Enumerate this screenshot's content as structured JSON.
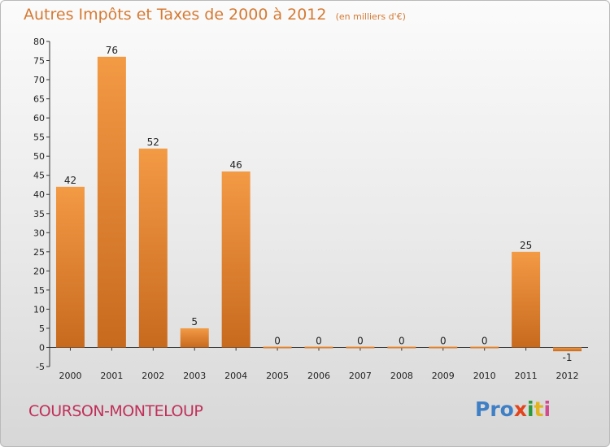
{
  "chart_data": {
    "type": "bar",
    "title": "Autres Impôts et Taxes de 2000 à 2012",
    "subtitle": "(en milliers d'€)",
    "categories": [
      "2000",
      "2001",
      "2002",
      "2003",
      "2004",
      "2005",
      "2006",
      "2007",
      "2008",
      "2009",
      "2010",
      "2011",
      "2012"
    ],
    "values": [
      42,
      76,
      52,
      5,
      46,
      0,
      0,
      0,
      0,
      0,
      0,
      25,
      -1
    ],
    "ylim": [
      -5,
      80
    ],
    "yticks": [
      -5,
      0,
      5,
      10,
      15,
      20,
      25,
      30,
      35,
      40,
      45,
      50,
      55,
      60,
      65,
      70,
      75,
      80
    ],
    "grid": false,
    "bar_color": "#f39a45",
    "bar_color_dark": "#c86a1e"
  },
  "location": "COURSON-MONTELOUP",
  "logo": {
    "p": "Pro",
    "x": "x",
    "i": "i",
    "t": "t",
    "i2": "i"
  }
}
